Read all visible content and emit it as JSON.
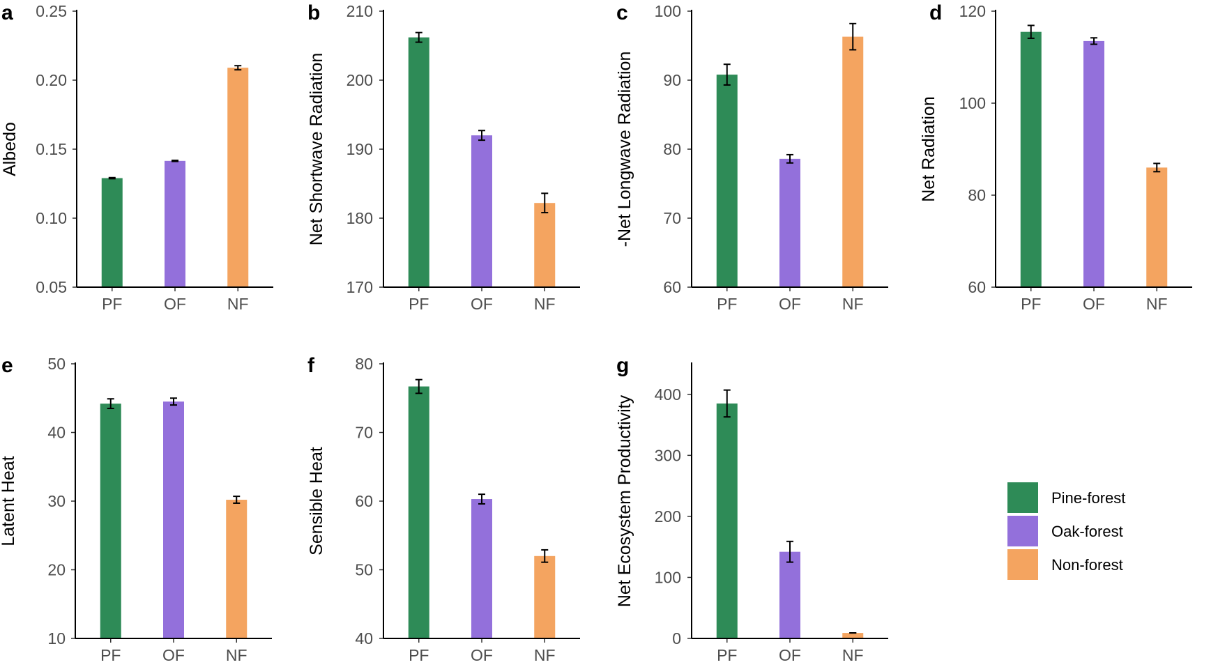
{
  "legend": {
    "items": [
      {
        "label": "Pine-forest",
        "color": "#2e8b57"
      },
      {
        "label": "Oak-forest",
        "color": "#9370db"
      },
      {
        "label": "Non-forest",
        "color": "#f4a460"
      }
    ]
  },
  "chart_data": [
    {
      "panel": "a",
      "type": "bar",
      "ylabel": "Albedo",
      "categories": [
        "PF",
        "OF",
        "NF"
      ],
      "values": [
        0.129,
        0.1415,
        0.209
      ],
      "errors": [
        0.0004,
        0.0004,
        0.0015
      ],
      "ylim": [
        0.05,
        0.25
      ],
      "ticks": [
        0.05,
        0.1,
        0.15,
        0.2,
        0.25
      ],
      "tick_labels": [
        "0.05",
        "0.10",
        "0.15",
        "0.20",
        "0.25"
      ]
    },
    {
      "panel": "b",
      "type": "bar",
      "ylabel": "Net Shortwave Radiation",
      "categories": [
        "PF",
        "OF",
        "NF"
      ],
      "values": [
        206.2,
        192.0,
        182.2
      ],
      "errors": [
        0.7,
        0.7,
        1.4
      ],
      "ylim": [
        170,
        210
      ],
      "ticks": [
        170,
        180,
        190,
        200,
        210
      ],
      "tick_labels": [
        "170",
        "180",
        "190",
        "200",
        "210"
      ]
    },
    {
      "panel": "c",
      "type": "bar",
      "ylabel": "-Net Longwave Radiation",
      "categories": [
        "PF",
        "OF",
        "NF"
      ],
      "values": [
        90.8,
        78.6,
        96.3
      ],
      "errors": [
        1.5,
        0.6,
        1.9
      ],
      "ylim": [
        60,
        100
      ],
      "ticks": [
        60,
        70,
        80,
        90,
        100
      ],
      "tick_labels": [
        "60",
        "70",
        "80",
        "90",
        "100"
      ]
    },
    {
      "panel": "d",
      "type": "bar",
      "ylabel": "Net Radiation",
      "categories": [
        "PF",
        "OF",
        "NF"
      ],
      "values": [
        115.5,
        113.5,
        86.0
      ],
      "errors": [
        1.4,
        0.7,
        0.9
      ],
      "ylim": [
        60,
        120
      ],
      "ticks": [
        60,
        80,
        100,
        120
      ],
      "tick_labels": [
        "60",
        "80",
        "100",
        "120"
      ]
    },
    {
      "panel": "e",
      "type": "bar",
      "ylabel": "Latent Heat",
      "categories": [
        "PF",
        "OF",
        "NF"
      ],
      "values": [
        44.2,
        44.5,
        30.2
      ],
      "errors": [
        0.7,
        0.5,
        0.5
      ],
      "ylim": [
        10,
        50
      ],
      "ticks": [
        10,
        20,
        30,
        40,
        50
      ],
      "tick_labels": [
        "10",
        "20",
        "30",
        "40",
        "50"
      ]
    },
    {
      "panel": "f",
      "type": "bar",
      "ylabel": "Sensible Heat",
      "categories": [
        "PF",
        "OF",
        "NF"
      ],
      "values": [
        76.7,
        60.3,
        52.0
      ],
      "errors": [
        1.0,
        0.7,
        0.9
      ],
      "ylim": [
        40,
        80
      ],
      "ticks": [
        40,
        50,
        60,
        70,
        80
      ],
      "tick_labels": [
        "40",
        "50",
        "60",
        "70",
        "80"
      ]
    },
    {
      "panel": "g",
      "type": "bar",
      "ylabel": "Net Ecosystem Productivity",
      "categories": [
        "PF",
        "OF",
        "NF"
      ],
      "values": [
        385,
        142,
        9
      ],
      "errors": [
        22,
        17,
        0
      ],
      "ylim": [
        0,
        450
      ],
      "ticks": [
        0,
        100,
        200,
        300,
        400
      ],
      "tick_labels": [
        "0",
        "100",
        "200",
        "300",
        "400"
      ]
    }
  ]
}
